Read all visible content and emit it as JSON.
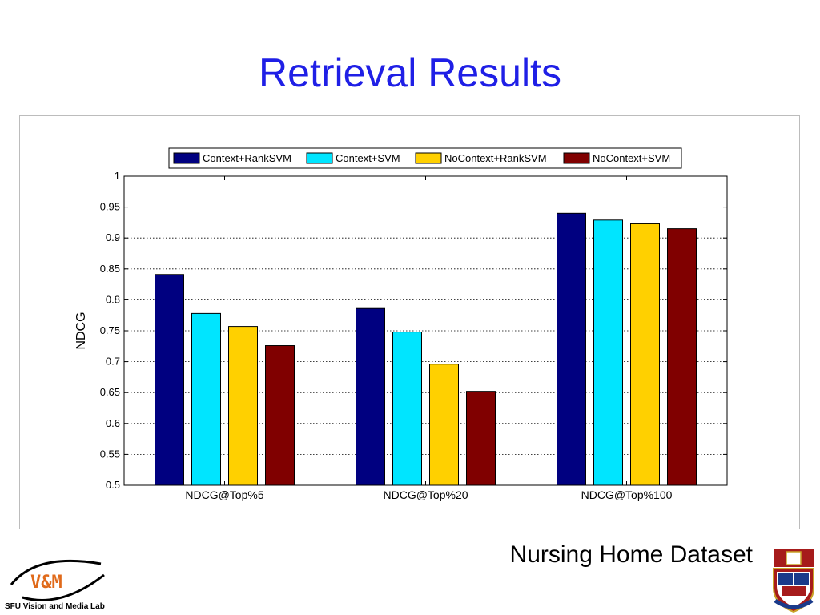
{
  "slide": {
    "title": "Retrieval Results",
    "caption": "Nursing Home Dataset",
    "lab_logo_text": "V&M",
    "lab_name": "SFU Vision and Media Lab"
  },
  "chart_data": {
    "type": "bar",
    "title": "",
    "xlabel": "",
    "ylabel": "NDCG",
    "ylim": [
      0.5,
      1
    ],
    "yticks": [
      "0.5",
      "0.55",
      "0.6",
      "0.65",
      "0.7",
      "0.75",
      "0.8",
      "0.85",
      "0.9",
      "0.95",
      "1"
    ],
    "grid": true,
    "legend_position": "top",
    "categories": [
      "NDCG@Top%5",
      "NDCG@Top%20",
      "NDCG@Top%100"
    ],
    "series": [
      {
        "name": "Context+RankSVM",
        "color": "#000080",
        "values": [
          0.841,
          0.786,
          0.94
        ]
      },
      {
        "name": "Context+SVM",
        "color": "#00e5ff",
        "values": [
          0.778,
          0.748,
          0.929
        ]
      },
      {
        "name": "NoContext+RankSVM",
        "color": "#ffd000",
        "values": [
          0.757,
          0.696,
          0.923
        ]
      },
      {
        "name": "NoContext+SVM",
        "color": "#800000",
        "values": [
          0.726,
          0.652,
          0.915
        ]
      }
    ]
  }
}
